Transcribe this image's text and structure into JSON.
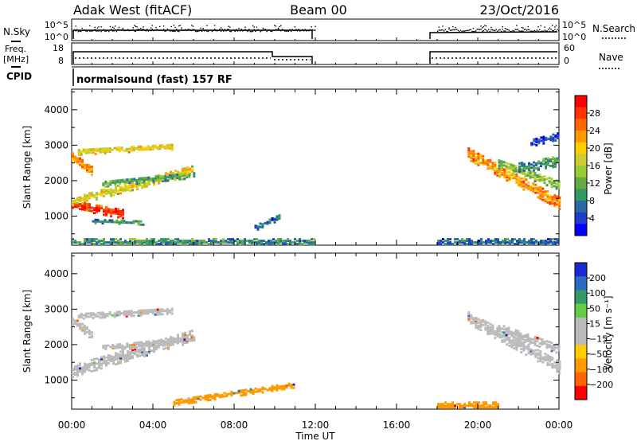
{
  "header": {
    "station": "Adak West (fitACF)",
    "beam": "Beam 00",
    "date": "23/Oct/2016"
  },
  "panels": {
    "nsky_label": "N.Sky",
    "nsearch_label": "N.Search",
    "nsky_ticks": [
      "10^5",
      "10^0"
    ],
    "nsearch_ticks": [
      "10^5",
      "10^0"
    ],
    "freq_label": "Freq.",
    "freq_unit": "[MHz]",
    "freq_ticks": [
      "18",
      "8"
    ],
    "nave_label": "Nave",
    "nave_ticks": [
      "60",
      "0"
    ],
    "cpid_label": "CPID",
    "cpid_text": "normalsound (fast) 157 RF"
  },
  "power_colorbar": {
    "label": "Power [dB]",
    "ticks": [
      "28",
      "24",
      "20",
      "16",
      "12",
      "8",
      "4"
    ],
    "colors": [
      "#ff0000",
      "#ff3300",
      "#ff6600",
      "#ff9900",
      "#ffcc00",
      "#cccc33",
      "#99cc33",
      "#66aa44",
      "#339966",
      "#2a6aa0",
      "#1e3ec8",
      "#0000ff"
    ]
  },
  "velocity_colorbar": {
    "label": "Velocity [m s⁻¹]",
    "ticks": [
      "200",
      "100",
      "50",
      "15",
      "−15",
      "−50",
      "−100",
      "−200"
    ],
    "colors": [
      "#1a2ad0",
      "#2a6ac0",
      "#339966",
      "#66cc44",
      "#bbbbbb",
      "#bbbbbb",
      "#ffcc00",
      "#ff9900",
      "#ff6600",
      "#ff0000"
    ]
  },
  "chart_data": [
    {
      "type": "heatmap",
      "title": "Power",
      "xlabel": "Time UT",
      "ylabel": "Slant Range [km]",
      "x_ticks": [
        "00:00",
        "04:00",
        "08:00",
        "12:00",
        "16:00",
        "20:00",
        "00:00"
      ],
      "y_ticks": [
        "4000",
        "3000",
        "2000",
        "1000"
      ],
      "xlim_hours": [
        0,
        24
      ],
      "ylim_km": [
        180,
        4580
      ],
      "colorbar": "Power [dB]",
      "echo_regions": [
        {
          "t0": 0.0,
          "t1": 2.5,
          "r_start": 1350,
          "r_end": 1100,
          "width": 250,
          "value_db": 26
        },
        {
          "t0": 0.0,
          "t1": 6.0,
          "r_start": 1450,
          "r_end": 2350,
          "width": 250,
          "value_db": 18
        },
        {
          "t0": 0.0,
          "t1": 1.0,
          "r_start": 2700,
          "r_end": 2300,
          "width": 250,
          "value_db": 22
        },
        {
          "t0": 0.3,
          "t1": 5.0,
          "r_start": 2850,
          "r_end": 3000,
          "width": 180,
          "value_db": 18
        },
        {
          "t0": 1.5,
          "t1": 6.0,
          "r_start": 1950,
          "r_end": 2200,
          "width": 180,
          "value_db": 12
        },
        {
          "t0": 1.0,
          "t1": 3.5,
          "r_start": 900,
          "r_end": 850,
          "width": 120,
          "value_db": 10
        },
        {
          "t0": 9.0,
          "t1": 10.2,
          "r_start": 700,
          "r_end": 1000,
          "width": 150,
          "value_db": 8
        },
        {
          "t0": 19.5,
          "t1": 24.0,
          "r_start": 2800,
          "r_end": 1400,
          "width": 350,
          "value_db": 22
        },
        {
          "t0": 21.0,
          "t1": 24.0,
          "r_start": 2500,
          "r_end": 1900,
          "width": 250,
          "value_db": 14
        },
        {
          "t0": 22.0,
          "t1": 24.0,
          "r_start": 2400,
          "r_end": 2600,
          "width": 300,
          "value_db": 10
        },
        {
          "t0": 22.6,
          "t1": 24.0,
          "r_start": 3100,
          "r_end": 3300,
          "width": 200,
          "value_db": 6
        },
        {
          "t0": 0.0,
          "t1": 12.0,
          "r_start": 300,
          "r_end": 300,
          "width": 200,
          "value_db": 10
        },
        {
          "t0": 18.0,
          "t1": 24.0,
          "r_start": 300,
          "r_end": 300,
          "width": 200,
          "value_db": 8
        }
      ]
    },
    {
      "type": "heatmap",
      "title": "Velocity",
      "xlabel": "Time UT",
      "ylabel": "Slant Range [km]",
      "x_ticks": [
        "00:00",
        "04:00",
        "08:00",
        "12:00",
        "16:00",
        "20:00",
        "00:00"
      ],
      "y_ticks": [
        "4000",
        "3000",
        "2000",
        "1000"
      ],
      "xlim_hours": [
        0,
        24
      ],
      "ylim_km": [
        180,
        4580
      ],
      "colorbar": "Velocity [m s⁻¹]",
      "dominant_value_ms": 0,
      "ground_scatter_color": "#bbbbbb",
      "echo_regions": [
        {
          "t0": 0.0,
          "t1": 6.0,
          "r_start": 1300,
          "r_end": 2300,
          "width": 350,
          "value_ms": 0
        },
        {
          "t0": 0.0,
          "t1": 1.0,
          "r_start": 2700,
          "r_end": 2300,
          "width": 250,
          "value_ms": 0
        },
        {
          "t0": 0.3,
          "t1": 5.0,
          "r_start": 2850,
          "r_end": 3000,
          "width": 180,
          "value_ms": 0
        },
        {
          "t0": 1.5,
          "t1": 6.0,
          "r_start": 1950,
          "r_end": 2200,
          "width": 180,
          "value_ms": 0
        },
        {
          "t0": 19.5,
          "t1": 24.0,
          "r_start": 2800,
          "r_end": 1400,
          "width": 350,
          "value_ms": 0
        },
        {
          "t0": 21.0,
          "t1": 24.0,
          "r_start": 2500,
          "r_end": 1900,
          "width": 250,
          "value_ms": 0
        },
        {
          "t0": 18.0,
          "t1": 21.0,
          "r_start": 300,
          "r_end": 300,
          "width": 250,
          "value_ms": -60
        },
        {
          "t0": 5.0,
          "t1": 11.0,
          "r_start": 400,
          "r_end": 900,
          "width": 150,
          "value_ms": -40
        }
      ]
    }
  ]
}
